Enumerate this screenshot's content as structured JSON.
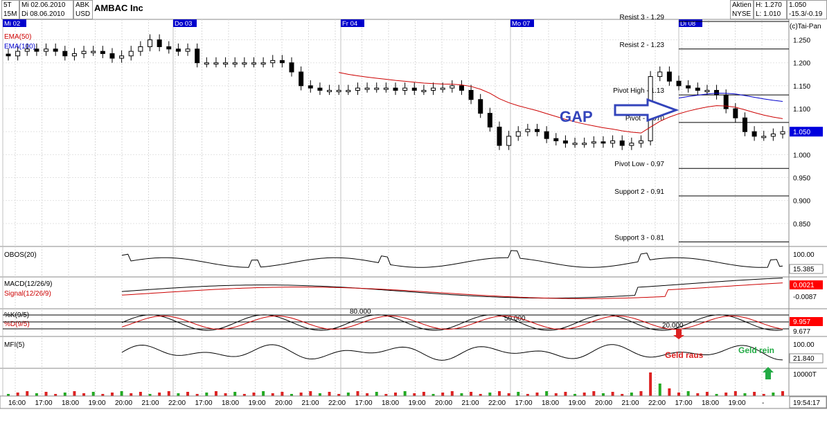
{
  "header": {
    "interval": "5T",
    "interval2": "15M",
    "date_from": "Mi 02.06.2010",
    "date_to": "Di 08.06.2010",
    "ticker": "ABK",
    "currency": "USD",
    "title": "AMBAC Inc",
    "market_type": "Aktien",
    "exchange": "NYSE",
    "high": "H: 1.270",
    "low": "L: 1.010",
    "last": "1.050",
    "change": "-15.3/-0.19",
    "copyright": "(c)Tai-Pan"
  },
  "day_markers": [
    "Mi 02",
    "Do 03",
    "Fr 04",
    "Mo 07",
    "Di 08"
  ],
  "colors": {
    "up_volume": "#22aa22",
    "down_volume": "#dd2222",
    "ema50": "#cc0000",
    "ema100": "#0000cc",
    "marker_bg": "#0000cc",
    "gap_blue": "#3344bb",
    "geld_raus": "#dd2222",
    "geld_rein": "#22aa44",
    "last_price_bg": "#0000dd",
    "value_bg_red": "#ff0000"
  },
  "chart_data": {
    "type": "candlestick",
    "title": "AMBAC Inc",
    "ylim": [
      0.8,
      1.29
    ],
    "y_ticks": [
      "1.250",
      "1.200",
      "1.150",
      "1.100",
      "1.050",
      "1.000",
      "0.950",
      "0.900",
      "0.850"
    ],
    "x_tick_labels": [
      "16:00",
      "17:00",
      "18:00",
      "19:00",
      "20:00",
      "21:00",
      "22:00",
      "17:00",
      "18:00",
      "19:00",
      "20:00",
      "21:00",
      "22:00",
      "17:00",
      "18:00",
      "19:00",
      "20:00",
      "21:00",
      "22:00",
      "17:00",
      "18:00",
      "19:00",
      "20:00",
      "21:00",
      "22:00",
      "17:00",
      "18:00",
      "19:00",
      "-"
    ],
    "time_readout": "19:54:17",
    "last_price": "1.050",
    "indicators": {
      "ema50": "EMA(50)",
      "ema100": "EMA(100)"
    },
    "closes": [
      1.215,
      1.225,
      1.23,
      1.225,
      1.23,
      1.225,
      1.215,
      1.22,
      1.225,
      1.225,
      1.22,
      1.21,
      1.215,
      1.225,
      1.235,
      1.25,
      1.235,
      1.23,
      1.225,
      1.23,
      1.2,
      1.2,
      1.2,
      1.2,
      1.2,
      1.2,
      1.2,
      1.2,
      1.205,
      1.2,
      1.18,
      1.15,
      1.145,
      1.14,
      1.14,
      1.14,
      1.14,
      1.145,
      1.145,
      1.145,
      1.145,
      1.14,
      1.145,
      1.14,
      1.14,
      1.145,
      1.145,
      1.15,
      1.14,
      1.12,
      1.09,
      1.06,
      1.02,
      1.04,
      1.05,
      1.055,
      1.05,
      1.035,
      1.03,
      1.025,
      1.025,
      1.025,
      1.028,
      1.025,
      1.03,
      1.02,
      1.025,
      1.03,
      1.17,
      1.18,
      1.16,
      1.15,
      1.145,
      1.14,
      1.14,
      1.13,
      1.1,
      1.08,
      1.05,
      1.04,
      1.04,
      1.045,
      1.05
    ],
    "pivot_lines": [
      {
        "label": "Resist 3 - 1.29",
        "value": 1.29
      },
      {
        "label": "Resist 2 - 1.23",
        "value": 1.23
      },
      {
        "label": "Pivot High - 1.13",
        "value": 1.13
      },
      {
        "label": "Pivot - 1.070",
        "value": 1.07
      },
      {
        "label": "Pivot Low - 0.97",
        "value": 0.97
      },
      {
        "label": "Support 2 - 0.91",
        "value": 0.91
      },
      {
        "label": "Support 3 - 0.81",
        "value": 0.81
      }
    ],
    "annotation": "GAP",
    "panels": [
      {
        "name": "OBOS(20)",
        "labels": [
          "OBOS(20)"
        ],
        "value_labels": [
          "100.00",
          "15.385"
        ]
      },
      {
        "name": "MACD(12/26/9)",
        "labels": [
          "MACD(12/26/9)",
          "Signal(12/26/9)"
        ],
        "value_labels": [
          "0.0021",
          "-0.0087"
        ]
      },
      {
        "name": "Stochastic",
        "labels": [
          "%K(9/5)",
          "%D(9/5)"
        ],
        "value_labels": [
          "9.957",
          "9.677"
        ],
        "levels": [
          "80.000",
          "50.000",
          "20.000"
        ]
      },
      {
        "name": "MFI(5)",
        "labels": [
          "MFI(5)"
        ],
        "value_labels": [
          "100.00",
          "21.840"
        ],
        "annotations": [
          "Geld raus",
          "Geld rein"
        ]
      },
      {
        "name": "Volume",
        "labels": [],
        "value_labels": [
          "10000T"
        ]
      }
    ]
  }
}
